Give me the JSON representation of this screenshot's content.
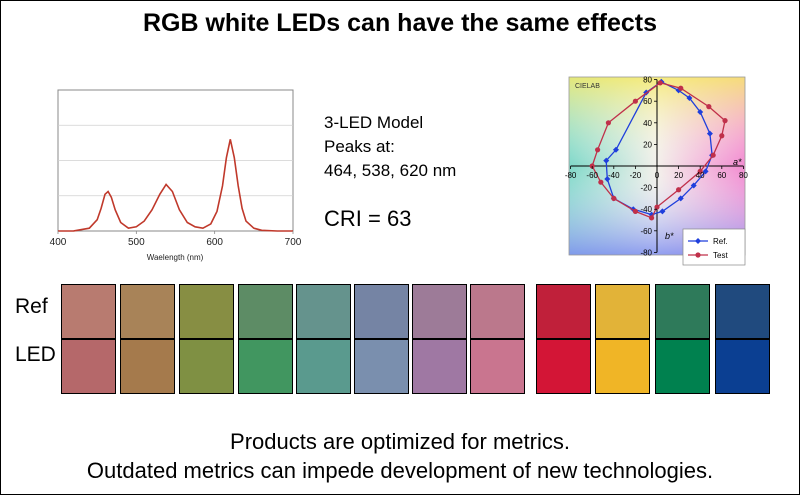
{
  "slide": {
    "title": "RGB white LEDs can have the same effects",
    "model": "3-LED Model",
    "peaks_label": "Peaks at:",
    "peaks_values": "464, 538, 620 nm",
    "cri": "CRI = 63",
    "row_ref": "Ref",
    "row_led": "LED",
    "footer_line1": "Products are optimized for metrics.",
    "footer_line2": "Outdated metrics can impede development of new technologies."
  },
  "chart_data": [
    {
      "type": "line",
      "xlabel": "Waelength (nm)",
      "ylabel": "",
      "xlim": [
        400,
        700
      ],
      "ylim": [
        0,
        1
      ],
      "xticks": [
        "400",
        "500",
        "600",
        "700"
      ],
      "grid": true,
      "line_color": "#c0392b",
      "series": [
        {
          "x": [
            400,
            420,
            440,
            450,
            455,
            460,
            464,
            468,
            473,
            480,
            490,
            500,
            510,
            520,
            530,
            538,
            546,
            555,
            565,
            575,
            585,
            595,
            603,
            610,
            615,
            620,
            625,
            630,
            635,
            640,
            650,
            660,
            680,
            700
          ],
          "y": [
            0,
            0.001,
            0.02,
            0.08,
            0.16,
            0.26,
            0.28,
            0.24,
            0.15,
            0.06,
            0.02,
            0.03,
            0.07,
            0.15,
            0.26,
            0.33,
            0.28,
            0.15,
            0.06,
            0.03,
            0.02,
            0.05,
            0.14,
            0.32,
            0.52,
            0.65,
            0.52,
            0.32,
            0.16,
            0.07,
            0.02,
            0.005,
            0,
            0
          ]
        }
      ]
    },
    {
      "type": "line",
      "title": "CIELAB",
      "xlabel": "a*",
      "ylabel": "b*",
      "xlim": [
        -80,
        80
      ],
      "ylim": [
        -80,
        80
      ],
      "xticks": [
        "-80",
        "-60",
        "-40",
        "-20",
        "0",
        "20",
        "40",
        "60",
        "80"
      ],
      "yticks": [
        "80",
        "60",
        "40",
        "20",
        "-20",
        "-40",
        "-60",
        "-80"
      ],
      "legend": "bottom-right",
      "series": [
        {
          "name": "Ref.",
          "color": "#1f3fdc",
          "marker": "diamond",
          "x": [
            4,
            20,
            30,
            40,
            49,
            51,
            45,
            34,
            22,
            5,
            -5,
            -22,
            -40,
            -46,
            -47,
            -38,
            -10
          ],
          "y": [
            78,
            70,
            63,
            50,
            30,
            10,
            -5,
            -18,
            -30,
            -42,
            -45,
            -40,
            -30,
            -12,
            5,
            15,
            68
          ]
        },
        {
          "name": "Test",
          "color": "#c0304a",
          "marker": "circle",
          "x": [
            3,
            22,
            48,
            63,
            60,
            52,
            40,
            20,
            0,
            -5,
            -20,
            -40,
            -52,
            -60,
            -55,
            -45,
            -20
          ],
          "y": [
            77,
            72,
            55,
            42,
            28,
            10,
            -5,
            -22,
            -38,
            -48,
            -42,
            -30,
            -15,
            0,
            15,
            40,
            60
          ]
        }
      ]
    }
  ],
  "swatches": [
    {
      "ref": "#b87b70",
      "led": "#b5686a"
    },
    {
      "ref": "#a88358",
      "led": "#a57a4c"
    },
    {
      "ref": "#878e43",
      "led": "#7f9043"
    },
    {
      "ref": "#5d8c65",
      "led": "#419660"
    },
    {
      "ref": "#65938d",
      "led": "#5a9a8e"
    },
    {
      "ref": "#7584a4",
      "led": "#7a8fae"
    },
    {
      "ref": "#9d7b98",
      "led": "#9f78a3"
    },
    {
      "ref": "#bb788c",
      "led": "#c9758f"
    },
    {
      "ref": "#c0203a",
      "led": "#d31536"
    },
    {
      "ref": "#e2b338",
      "led": "#f0b526"
    },
    {
      "ref": "#2e7a5a",
      "led": "#00814f"
    },
    {
      "ref": "#204a7e",
      "led": "#0b3f92"
    }
  ]
}
